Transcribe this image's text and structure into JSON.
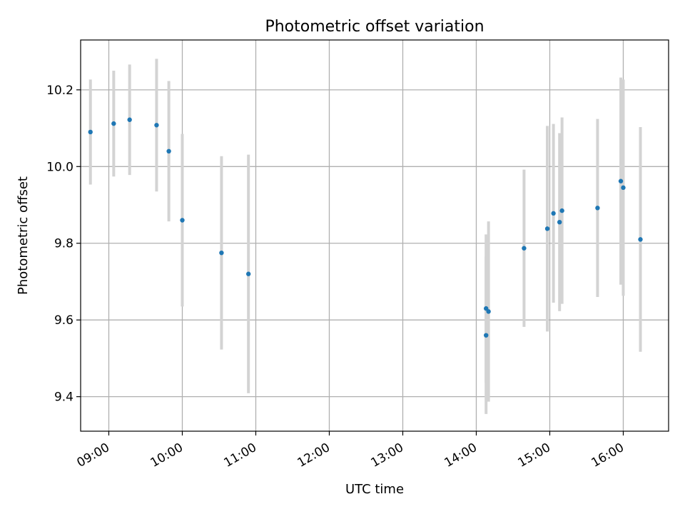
{
  "chart_data": {
    "type": "scatter",
    "title": "Photometric offset variation",
    "xlabel": "UTC time",
    "ylabel": "Photometric offset",
    "xlim": [
      "08:37",
      "16:37"
    ],
    "ylim": [
      9.31,
      10.33
    ],
    "xticks": [
      "09:00",
      "10:00",
      "11:00",
      "12:00",
      "13:00",
      "14:00",
      "15:00",
      "16:00"
    ],
    "yticks": [
      "9.4",
      "9.6",
      "9.8",
      "10.0",
      "10.2"
    ],
    "grid": true,
    "error_bar_color": "#d3d3d3",
    "marker_color": "#1f77b4",
    "points": [
      {
        "t": "08:45",
        "y": 10.09,
        "err": 0.137
      },
      {
        "t": "09:04",
        "y": 10.112,
        "err": 0.138
      },
      {
        "t": "09:17",
        "y": 10.122,
        "err": 0.144
      },
      {
        "t": "09:39",
        "y": 10.108,
        "err": 0.173
      },
      {
        "t": "09:49",
        "y": 10.04,
        "err": 0.183
      },
      {
        "t": "10:00",
        "y": 9.86,
        "err": 0.225
      },
      {
        "t": "10:32",
        "y": 9.775,
        "err": 0.252
      },
      {
        "t": "10:54",
        "y": 9.72,
        "err": 0.311
      },
      {
        "t": "14:08",
        "y": 9.56,
        "err": 0.205
      },
      {
        "t": "14:08",
        "y": 9.63,
        "err": 0.193
      },
      {
        "t": "14:10",
        "y": 9.622,
        "err": 0.235
      },
      {
        "t": "14:39",
        "y": 9.787,
        "err": 0.205
      },
      {
        "t": "14:58",
        "y": 9.838,
        "err": 0.268
      },
      {
        "t": "15:03",
        "y": 9.878,
        "err": 0.233
      },
      {
        "t": "15:08",
        "y": 9.855,
        "err": 0.232
      },
      {
        "t": "15:10",
        "y": 9.885,
        "err": 0.243
      },
      {
        "t": "15:39",
        "y": 9.892,
        "err": 0.232
      },
      {
        "t": "15:58",
        "y": 9.962,
        "err": 0.27
      },
      {
        "t": "16:00",
        "y": 9.945,
        "err": 0.282
      },
      {
        "t": "16:14",
        "y": 9.81,
        "err": 0.293
      }
    ]
  }
}
